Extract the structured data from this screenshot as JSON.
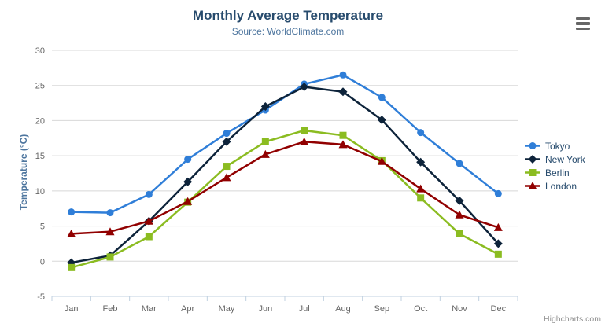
{
  "chart_data": {
    "type": "line",
    "title": "Monthly Average Temperature",
    "subtitle": "Source: WorldClimate.com",
    "xlabel": "",
    "ylabel": "Temperature (°C)",
    "categories": [
      "Jan",
      "Feb",
      "Mar",
      "Apr",
      "May",
      "Jun",
      "Jul",
      "Aug",
      "Sep",
      "Oct",
      "Nov",
      "Dec"
    ],
    "ylim": [
      -5,
      30
    ],
    "y_ticks": [
      -5,
      0,
      5,
      10,
      15,
      20,
      25,
      30
    ],
    "grid": "horizontal",
    "legend_position": "right",
    "series": [
      {
        "name": "Tokyo",
        "color": "#2f7ed8",
        "marker": "circle",
        "values": [
          7.0,
          6.9,
          9.5,
          14.5,
          18.2,
          21.5,
          25.2,
          26.5,
          23.3,
          18.3,
          13.9,
          9.6
        ]
      },
      {
        "name": "New York",
        "color": "#0d233a",
        "marker": "diamond",
        "values": [
          -0.2,
          0.8,
          5.7,
          11.3,
          17.0,
          22.0,
          24.8,
          24.1,
          20.1,
          14.1,
          8.6,
          2.5
        ]
      },
      {
        "name": "Berlin",
        "color": "#8bbc21",
        "marker": "square",
        "values": [
          -0.9,
          0.6,
          3.5,
          8.4,
          13.5,
          17.0,
          18.6,
          17.9,
          14.3,
          9.0,
          3.9,
          1.0
        ]
      },
      {
        "name": "London",
        "color": "#910000",
        "marker": "triangle",
        "values": [
          3.9,
          4.2,
          5.7,
          8.5,
          11.9,
          15.2,
          17.0,
          16.6,
          14.2,
          10.3,
          6.6,
          4.8
        ]
      }
    ],
    "credit": "Highcharts.com"
  },
  "icons": {
    "export_menu": "hamburger-icon"
  },
  "colors": {
    "title": "#274b6d",
    "subtitle": "#4d759e",
    "axis_title": "#4d759e",
    "tick_label": "#666666",
    "gridline": "#d8d8d8",
    "axis_line": "#c0d0e0",
    "credit": "#909090"
  }
}
